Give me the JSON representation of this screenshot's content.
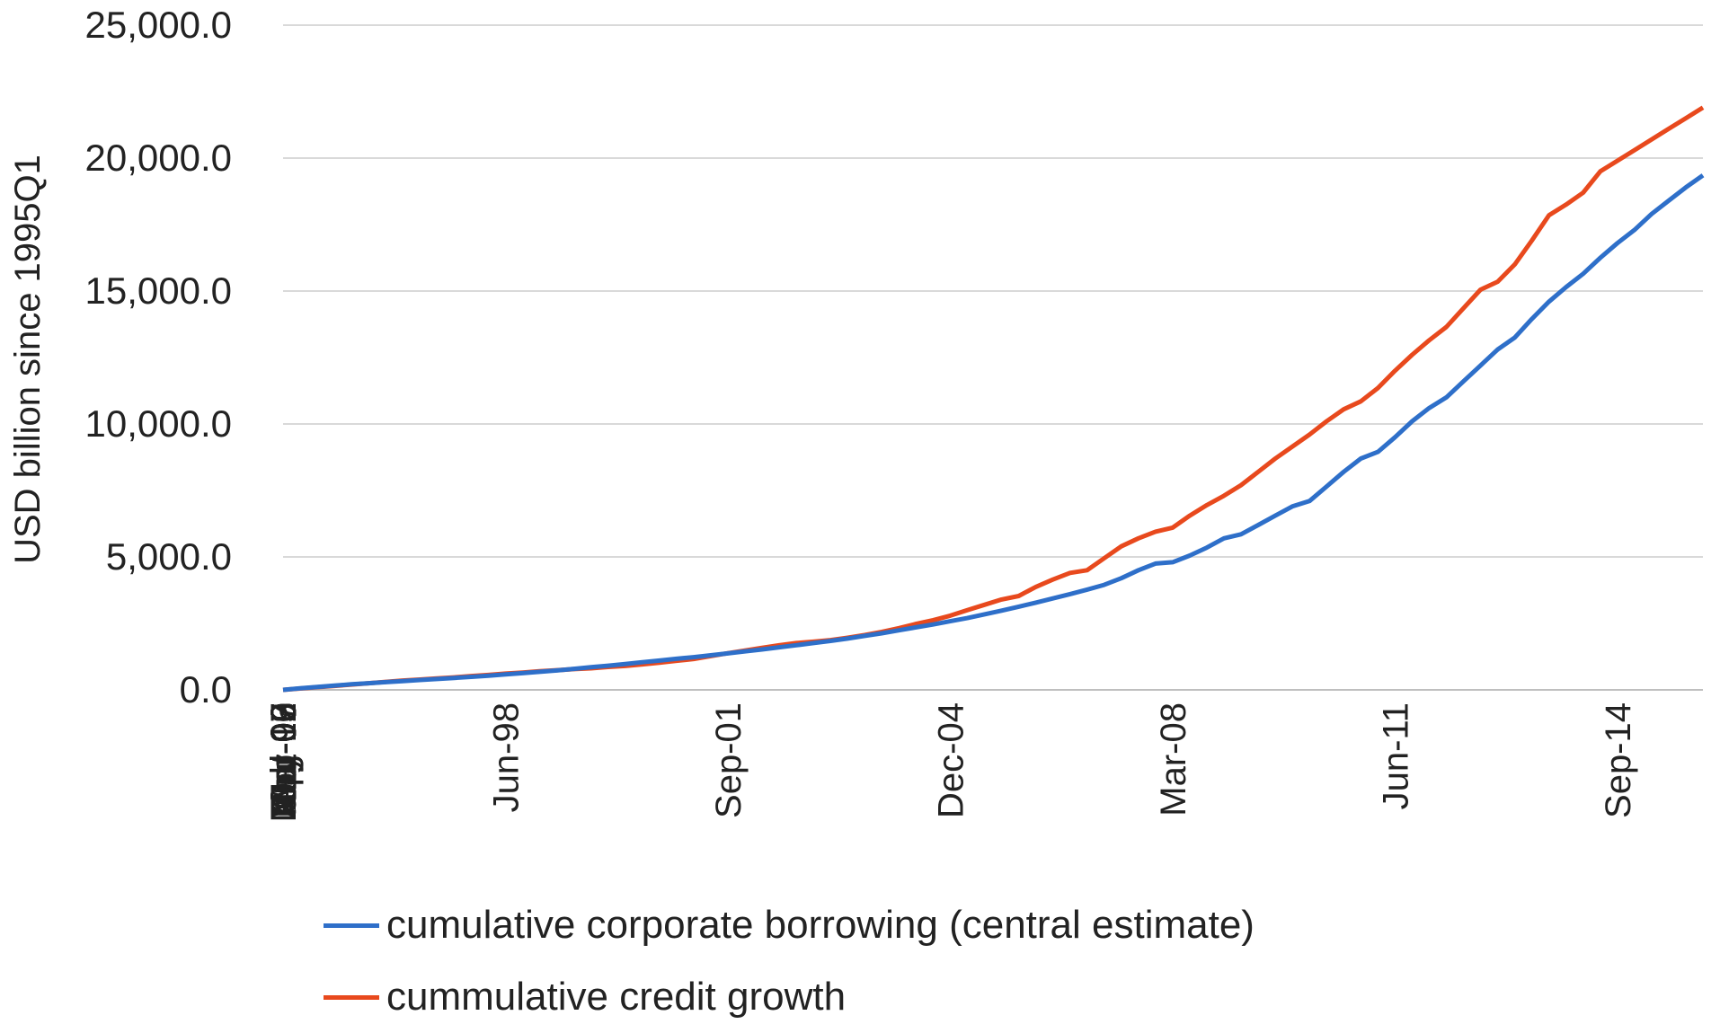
{
  "chart_data": {
    "type": "line",
    "xlabel": "",
    "ylabel": "USD billion since 1995Q1",
    "ylim": [
      0,
      25000
    ],
    "yticks": [
      "0.0",
      "5,000.0",
      "10,000.0",
      "15,000.0",
      "20,000.0",
      "25,000.0"
    ],
    "grid": true,
    "legend_position": "bottom",
    "x": [
      "Mar-95",
      "Jun-95",
      "Sep-95",
      "Dec-95",
      "Mar-96",
      "Jun-96",
      "Sep-96",
      "Dec-96",
      "Mar-97",
      "Jun-97",
      "Sep-97",
      "Dec-97",
      "Mar-98",
      "Jun-98",
      "Sep-98",
      "Dec-98",
      "Mar-99",
      "Jun-99",
      "Sep-99",
      "Dec-99",
      "Mar-00",
      "Jun-00",
      "Sep-00",
      "Dec-00",
      "Mar-01",
      "Jun-01",
      "Sep-01",
      "Dec-01",
      "Mar-02",
      "Jun-02",
      "Sep-02",
      "Dec-02",
      "Mar-03",
      "Jun-03",
      "Sep-03",
      "Dec-03",
      "Mar-04",
      "Jun-04",
      "Sep-04",
      "Dec-04",
      "Mar-05",
      "Jun-05",
      "Sep-05",
      "Dec-05",
      "Mar-06",
      "Jun-06",
      "Sep-06",
      "Dec-06",
      "Mar-07",
      "Jun-07",
      "Sep-07",
      "Dec-07",
      "Mar-08",
      "Jun-08",
      "Sep-08",
      "Dec-08",
      "Mar-09",
      "Jun-09",
      "Sep-09",
      "Dec-09",
      "Mar-10",
      "Jun-10",
      "Sep-10",
      "Dec-10",
      "Mar-11",
      "Jun-11",
      "Sep-11",
      "Dec-11",
      "Mar-12",
      "Jun-12",
      "Sep-12",
      "Dec-12",
      "Mar-13",
      "Jun-13",
      "Sep-13",
      "Dec-13",
      "Mar-14",
      "Jun-14",
      "Sep-14",
      "Dec-14",
      "Mar-15",
      "Jun-15",
      "Sep-15",
      "Dec-15"
    ],
    "x_tick_labels": [
      "Mar-95",
      "Apr-96",
      "May-97",
      "Jun-98",
      "Jul-99",
      "Aug-00",
      "Sep-01",
      "Oct-02",
      "Nov-03",
      "Dec-04",
      "Jan-06",
      "Feb-07",
      "Mar-08",
      "Apr-09",
      "May-10",
      "Jun-11",
      "Jul-12",
      "Aug-13",
      "Sep-14",
      "Oct-15"
    ],
    "series": [
      {
        "name": "cumulative corporate borrowing (central estimate)",
        "color": "#2e6fc9",
        "values": [
          0,
          60,
          110,
          160,
          210,
          250,
          290,
          330,
          370,
          410,
          450,
          490,
          530,
          580,
          630,
          680,
          730,
          790,
          850,
          910,
          970,
          1040,
          1100,
          1170,
          1230,
          1300,
          1370,
          1450,
          1520,
          1600,
          1680,
          1760,
          1840,
          1930,
          2030,
          2130,
          2240,
          2350,
          2460,
          2580,
          2700,
          2840,
          2980,
          3130,
          3280,
          3440,
          3600,
          3770,
          3950,
          4200,
          4500,
          4750,
          4800,
          5050,
          5350,
          5700,
          5850,
          6200,
          6550,
          6900,
          7100,
          7650,
          8200,
          8700,
          8950,
          9500,
          10100,
          10600,
          11000,
          11600,
          12200,
          12800,
          13250,
          13950,
          14600,
          15150,
          15650,
          16250,
          16800,
          17300,
          17900,
          18400,
          18900,
          19350
        ]
      },
      {
        "name": "cummulative credit growth",
        "color": "#e8491d",
        "values": [
          0,
          50,
          100,
          150,
          200,
          250,
          300,
          350,
          390,
          430,
          470,
          520,
          560,
          610,
          650,
          700,
          740,
          780,
          810,
          860,
          900,
          960,
          1020,
          1090,
          1160,
          1270,
          1380,
          1480,
          1580,
          1680,
          1760,
          1810,
          1870,
          1960,
          2060,
          2180,
          2320,
          2480,
          2620,
          2790,
          3000,
          3200,
          3400,
          3530,
          3870,
          4150,
          4400,
          4500,
          4950,
          5400,
          5700,
          5950,
          6100,
          6550,
          6950,
          7300,
          7700,
          8200,
          8700,
          9150,
          9600,
          10100,
          10550,
          10850,
          11350,
          12000,
          12600,
          13150,
          13650,
          14350,
          15050,
          15350,
          16000,
          16900,
          17850,
          18250,
          18700,
          19500,
          19900,
          20300,
          20700,
          21100,
          21500,
          21900
        ]
      }
    ]
  }
}
